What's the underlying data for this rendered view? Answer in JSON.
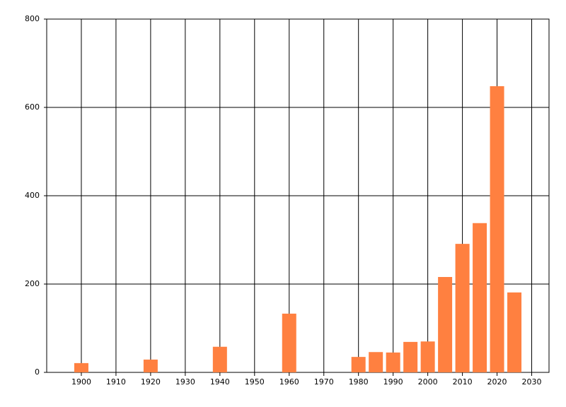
{
  "chart_data": {
    "type": "bar",
    "x": [
      1900,
      1920,
      1940,
      1960,
      1980,
      1985,
      1990,
      1995,
      2000,
      2005,
      2010,
      2015,
      2020,
      2025
    ],
    "values": [
      21,
      29,
      58,
      133,
      35,
      46,
      45,
      69,
      70,
      216,
      291,
      338,
      648,
      181
    ],
    "color": "#ff8040",
    "xlim": [
      1890,
      2035
    ],
    "xticks": [
      1900,
      1910,
      1920,
      1930,
      1940,
      1950,
      1960,
      1970,
      1980,
      1990,
      2000,
      2010,
      2020,
      2030
    ],
    "ylim": [
      0,
      800
    ],
    "yticks": [
      0,
      200,
      400,
      600,
      800
    ],
    "grid": true
  }
}
